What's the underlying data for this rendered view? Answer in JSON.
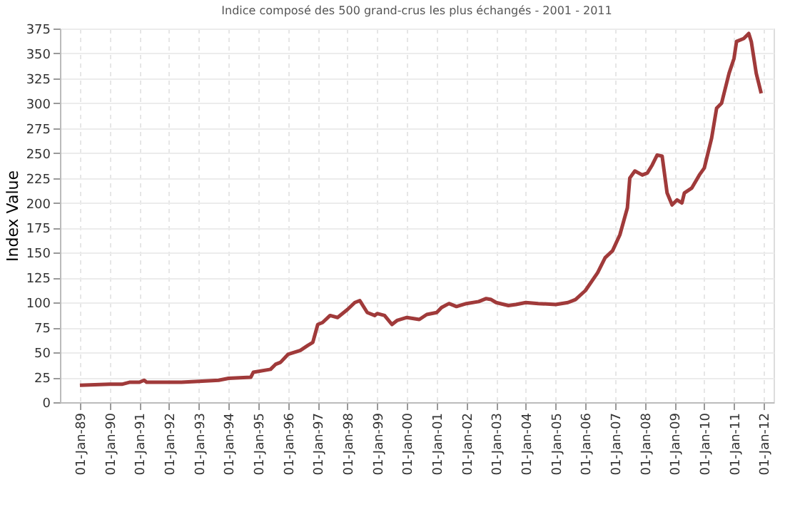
{
  "chart_data": {
    "type": "line",
    "title": "Indice composé des 500 grand-crus les plus échangés - 2001 - 2011",
    "ylabel": "Index Value",
    "x": [
      "1989-01",
      "1990-01",
      "1990-06",
      "1990-09",
      "1991-01",
      "1991-03",
      "1991-04",
      "1992-06",
      "1993-01",
      "1993-09",
      "1994-01",
      "1994-10",
      "1994-11",
      "1995-06",
      "1995-08",
      "1995-10",
      "1996-01",
      "1996-06",
      "1996-09",
      "1996-11",
      "1997-01",
      "1997-03",
      "1997-06",
      "1997-09",
      "1998-01",
      "1998-04",
      "1998-06",
      "1998-09",
      "1998-12",
      "1999-01",
      "1999-04",
      "1999-07",
      "1999-09",
      "2000-01",
      "2000-06",
      "2000-09",
      "2001-01",
      "2001-03",
      "2001-06",
      "2001-09",
      "2002-01",
      "2002-06",
      "2002-09",
      "2002-11",
      "2003-01",
      "2003-06",
      "2003-09",
      "2004-01",
      "2004-06",
      "2005-01",
      "2005-06",
      "2005-09",
      "2006-01",
      "2006-06",
      "2006-09",
      "2006-12",
      "2007-03",
      "2007-06",
      "2007-07",
      "2007-09",
      "2007-12",
      "2008-02",
      "2008-04",
      "2008-06",
      "2008-08",
      "2008-10",
      "2008-12",
      "2009-02",
      "2009-04",
      "2009-05",
      "2009-08",
      "2009-11",
      "2010-01",
      "2010-04",
      "2010-06",
      "2010-08",
      "2010-11",
      "2011-01",
      "2011-02",
      "2011-05",
      "2011-07",
      "2011-08",
      "2011-10",
      "2011-12"
    ],
    "series": [
      {
        "color": "#a03a3a",
        "values": [
          17,
          18,
          18,
          20,
          20,
          22,
          20,
          20,
          21,
          22,
          24,
          25,
          30,
          33,
          38,
          40,
          48,
          52,
          57,
          60,
          78,
          80,
          87,
          85,
          93,
          100,
          102,
          90,
          87,
          89,
          87,
          78,
          82,
          85,
          83,
          88,
          90,
          95,
          99,
          96,
          99,
          101,
          104,
          103,
          100,
          97,
          98,
          100,
          99,
          98,
          100,
          103,
          112,
          130,
          145,
          152,
          168,
          195,
          225,
          232,
          228,
          230,
          238,
          248,
          247,
          210,
          198,
          203,
          200,
          210,
          215,
          228,
          235,
          265,
          295,
          300,
          330,
          345,
          362,
          365,
          370,
          362,
          330,
          310
        ]
      }
    ],
    "xlim": [
      "1988-05-01",
      "2012-05-01"
    ],
    "xticks": [
      {
        "value": "1989-01-01",
        "label": "01-Jan-89"
      },
      {
        "value": "1990-01-01",
        "label": "01-Jan-90"
      },
      {
        "value": "1991-01-01",
        "label": "01-Jan-91"
      },
      {
        "value": "1992-01-01",
        "label": "01-Jan-92"
      },
      {
        "value": "1993-01-01",
        "label": "01-Jan-93"
      },
      {
        "value": "1994-01-01",
        "label": "01-Jan-94"
      },
      {
        "value": "1995-01-01",
        "label": "01-Jan-95"
      },
      {
        "value": "1996-01-01",
        "label": "01-Jan-96"
      },
      {
        "value": "1997-01-01",
        "label": "01-Jan-97"
      },
      {
        "value": "1998-01-01",
        "label": "01-Jan-98"
      },
      {
        "value": "1999-01-01",
        "label": "01-Jan-99"
      },
      {
        "value": "2000-01-01",
        "label": "01-Jan-00"
      },
      {
        "value": "2001-01-01",
        "label": "01-Jan-01"
      },
      {
        "value": "2002-01-01",
        "label": "01-Jan-02"
      },
      {
        "value": "2003-01-01",
        "label": "01-Jan-03"
      },
      {
        "value": "2004-01-01",
        "label": "01-Jan-04"
      },
      {
        "value": "2005-01-01",
        "label": "01-Jan-05"
      },
      {
        "value": "2006-01-01",
        "label": "01-Jan-06"
      },
      {
        "value": "2007-01-01",
        "label": "01-Jan-07"
      },
      {
        "value": "2008-01-01",
        "label": "01-Jan-08"
      },
      {
        "value": "2009-01-01",
        "label": "01-Jan-09"
      },
      {
        "value": "2010-01-01",
        "label": "01-Jan-10"
      },
      {
        "value": "2011-01-01",
        "label": "01-Jan-11"
      },
      {
        "value": "2012-01-01",
        "label": "01-Jan-12"
      }
    ],
    "ylim": [
      0,
      375
    ],
    "yticks": [
      0,
      25,
      50,
      75,
      100,
      125,
      150,
      175,
      200,
      225,
      250,
      275,
      300,
      325,
      350,
      375
    ],
    "grid": true,
    "marker": "none",
    "line_style": "solid"
  }
}
